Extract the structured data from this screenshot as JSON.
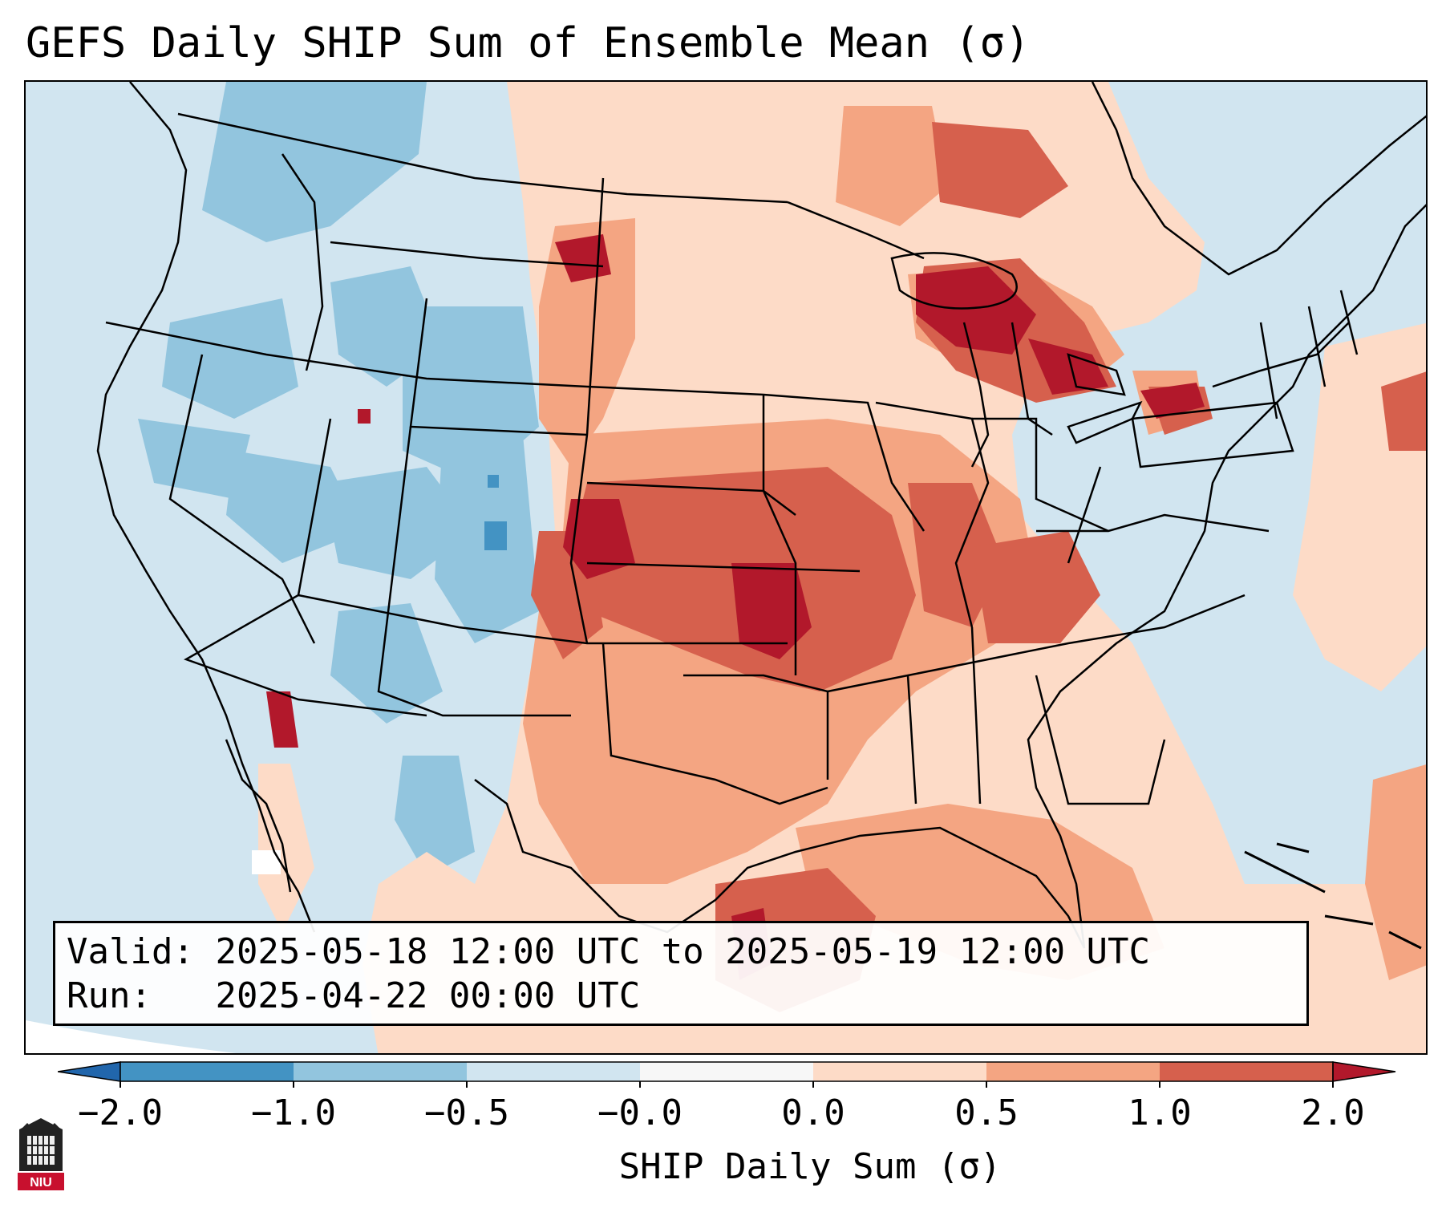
{
  "title": "GEFS Daily SHIP Sum of Ensemble Mean (σ)",
  "info": {
    "valid_label": "Valid:",
    "valid_value": "2025-05-18 12:00 UTC to 2025-05-19 12:00 UTC",
    "run_label": "Run:",
    "run_value": "2025-04-22 00:00 UTC"
  },
  "colorbar": {
    "label": "SHIP Daily Sum (σ)",
    "ticks": [
      "−2.0",
      "−1.0",
      "−0.5",
      "−0.0",
      "0.0",
      "0.5",
      "1.0",
      "2.0"
    ],
    "colors": [
      "#2166ac",
      "#4393c3",
      "#92c5de",
      "#d1e5f0",
      "#f7f7f7",
      "#fddbc7",
      "#f4a582",
      "#d6604d",
      "#b2182b"
    ]
  },
  "logo": {
    "text": "NIU"
  },
  "map": {
    "projection": "Lambert Conformal (CONUS)",
    "ocean_color": "#d1e5f0",
    "gridded_field": "SHIP daily sum anomaly"
  }
}
